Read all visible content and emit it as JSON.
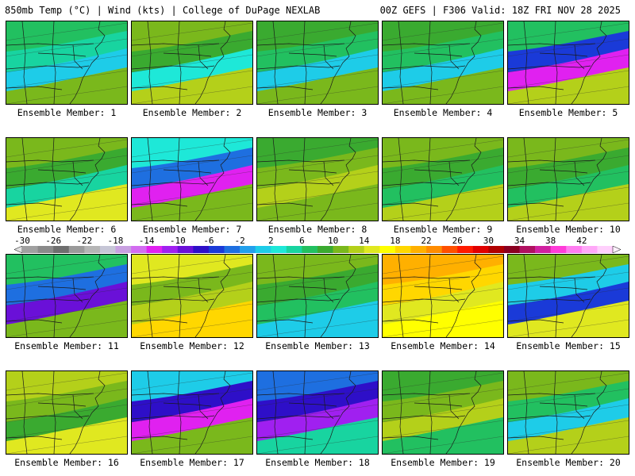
{
  "header": {
    "left_title": "850mb Temp (°C) | Wind (kts) | College of DuPage NEXLAB",
    "right_title": "00Z GEFS | F306 Valid: 18Z FRI NOV 28 2025"
  },
  "colorbar": {
    "labels": [
      "-30",
      "-26",
      "-22",
      "-18",
      "-14",
      "-10",
      "-6",
      "-2",
      "2",
      "6",
      "10",
      "14",
      "18",
      "22",
      "26",
      "30",
      "34",
      "38",
      "42"
    ],
    "colors": [
      "#a0a0a0",
      "#8a8a8a",
      "#6e6e6e",
      "#9a9a9a",
      "#b5b5b5",
      "#c6c6d6",
      "#c8a0e0",
      "#d26cf0",
      "#e021f0",
      "#a020f0",
      "#6a10d8",
      "#2e0fc8",
      "#1a3ad8",
      "#1e6fe0",
      "#22a0ec",
      "#1ecce8",
      "#1ee8d8",
      "#18d4a0",
      "#22c060",
      "#3aaa30",
      "#7ab81c",
      "#b4d01a",
      "#e0e820",
      "#ffff00",
      "#ffd700",
      "#ffb000",
      "#ff8c00",
      "#ff5000",
      "#ff1a00",
      "#e00000",
      "#b00000",
      "#8a0020",
      "#b01060",
      "#d020a0",
      "#ff3cd8",
      "#ff7cf0",
      "#ffa8f8",
      "#ffd0fc"
    ],
    "left_arrow_color": "#e0e0e0",
    "right_arrow_color": "#fff0ff"
  },
  "members": [
    {
      "caption": "Ensemble Member: 1",
      "colors": [
        "#1ecce8",
        "#18d4a0",
        "#22c060",
        "#7ab81c"
      ]
    },
    {
      "caption": "Ensemble Member: 2",
      "colors": [
        "#1ee8d8",
        "#3aaa30",
        "#7ab81c",
        "#b4d01a"
      ]
    },
    {
      "caption": "Ensemble Member: 3",
      "colors": [
        "#1ecce8",
        "#22c060",
        "#3aaa30",
        "#7ab81c"
      ]
    },
    {
      "caption": "Ensemble Member: 4",
      "colors": [
        "#1ecce8",
        "#22c060",
        "#3aaa30",
        "#7ab81c"
      ]
    },
    {
      "caption": "Ensemble Member: 5",
      "colors": [
        "#e021f0",
        "#1a3ad8",
        "#22c060",
        "#b4d01a"
      ]
    },
    {
      "caption": "Ensemble Member: 6",
      "colors": [
        "#18d4a0",
        "#3aaa30",
        "#7ab81c",
        "#e0e820"
      ]
    },
    {
      "caption": "Ensemble Member: 7",
      "colors": [
        "#e021f0",
        "#1e6fe0",
        "#1ee8d8",
        "#7ab81c"
      ]
    },
    {
      "caption": "Ensemble Member: 8",
      "colors": [
        "#b4d01a",
        "#7ab81c",
        "#3aaa30",
        "#7ab81c"
      ]
    },
    {
      "caption": "Ensemble Member: 9",
      "colors": [
        "#22c060",
        "#3aaa30",
        "#7ab81c",
        "#b4d01a"
      ]
    },
    {
      "caption": "Ensemble Member: 10",
      "colors": [
        "#22c060",
        "#3aaa30",
        "#7ab81c",
        "#b4d01a"
      ]
    },
    {
      "caption": "Ensemble Member: 11",
      "colors": [
        "#6a10d8",
        "#1e6fe0",
        "#22c060",
        "#7ab81c"
      ]
    },
    {
      "caption": "Ensemble Member: 12",
      "colors": [
        "#b4d01a",
        "#7ab81c",
        "#e0e820",
        "#ffd700"
      ]
    },
    {
      "caption": "Ensemble Member: 13",
      "colors": [
        "#22c060",
        "#3aaa30",
        "#7ab81c",
        "#1ecce8"
      ]
    },
    {
      "caption": "Ensemble Member: 14",
      "colors": [
        "#e0e820",
        "#ffd700",
        "#ffb000",
        "#ffff00"
      ]
    },
    {
      "caption": "Ensemble Member: 15",
      "colors": [
        "#1a3ad8",
        "#1ecce8",
        "#7ab81c",
        "#e0e820"
      ]
    },
    {
      "caption": "Ensemble Member: 16",
      "colors": [
        "#3aaa30",
        "#7ab81c",
        "#b4d01a",
        "#e0e820"
      ]
    },
    {
      "caption": "Ensemble Member: 17",
      "colors": [
        "#e021f0",
        "#2e0fc8",
        "#1ecce8",
        "#7ab81c"
      ]
    },
    {
      "caption": "Ensemble Member: 18",
      "colors": [
        "#a020f0",
        "#2e0fc8",
        "#1e6fe0",
        "#18d4a0"
      ]
    },
    {
      "caption": "Ensemble Member: 19",
      "colors": [
        "#b4d01a",
        "#7ab81c",
        "#3aaa30",
        "#22c060"
      ]
    },
    {
      "caption": "Ensemble Member: 20",
      "colors": [
        "#1ecce8",
        "#22c060",
        "#7ab81c",
        "#b4d01a"
      ]
    }
  ]
}
